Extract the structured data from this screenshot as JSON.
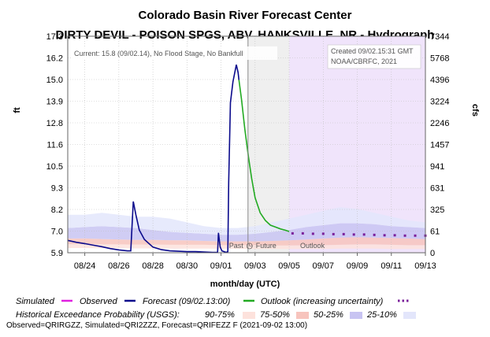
{
  "titles": {
    "main": "Colorado Basin River Forecast Center",
    "sub": "DIRTY DEVIL - POISON SPGS, ABV, HANKSVILLE, NR - Hydrograph"
  },
  "notes": {
    "current": "Current: 15.8 (09/02.14), No Flood Stage, No Bankfull",
    "created": "Created 09/02.15:31 GMT",
    "credit": "NOAA/CBRFC, 2021",
    "past": "Past",
    "future": "Future",
    "outlook": "Outlook"
  },
  "legend": {
    "simulated": "Simulated",
    "observed": "Observed",
    "forecast": "Forecast (09/02.13:00)",
    "outlook": "Outlook (increasing uncertainty)",
    "hist_title": "Historical Exceedance Probability (USGS):",
    "p90_75": "90-75%",
    "p75_50": "75-50%",
    "p50_25": "50-25%",
    "p25_10": "25-10%"
  },
  "footer": "Observed=QRIRGZZ, Simulated=QRI2ZZZ, Forecast=QRIFEZZ F (2021-09-02 13:00)",
  "colors": {
    "observed": "#0a0a8c",
    "forecast": "#22aa22",
    "outlook": "#7a1f9a",
    "simulated": "#e020e0",
    "future_shade": "#efefef",
    "outlook_shade": "#f0e4fb",
    "band_90_75": "#fde2dc",
    "band_75_50": "#f7c4bd",
    "band_50_25": "#c8c4f2",
    "band_25_10": "#e3e6fb"
  },
  "chart_data": {
    "type": "line",
    "xlabel": "month/day (UTC)",
    "ylabel_left": "ft",
    "ylabel_right": "cfs",
    "x_start": "08/23",
    "x_end": "09/13",
    "x_ticks": [
      "08/24",
      "08/26",
      "08/28",
      "08/30",
      "09/01",
      "09/03",
      "09/05",
      "09/07",
      "09/09",
      "09/11",
      "09/13"
    ],
    "y_ticks_ft": [
      "5.9",
      "7.0",
      "8.2",
      "9.3",
      "10.5",
      "11.6",
      "12.8",
      "13.9",
      "15.0",
      "16.2",
      "17.3"
    ],
    "y_ticks_cfs": [
      "0",
      "61",
      "325",
      "631",
      "941",
      "1457",
      "2246",
      "3224",
      "4396",
      "5768",
      "7344"
    ],
    "ylim_ft": [
      5.9,
      17.3
    ],
    "grid": true,
    "now": "09/02.14",
    "outlook_start": "09/05.00",
    "series": [
      {
        "name": "Observed",
        "x": [
          0.0,
          0.5,
          1.0,
          1.5,
          2.0,
          2.5,
          3.0,
          3.5,
          3.7,
          3.75,
          3.85,
          4.0,
          4.2,
          4.5,
          5.0,
          5.5,
          6.0,
          6.5,
          7.0,
          7.5,
          8.0,
          8.5,
          8.8,
          8.85,
          8.95,
          9.05,
          9.3,
          9.4,
          9.45,
          9.55,
          9.7,
          9.9,
          10.0,
          10.05
        ],
        "y": [
          6.55,
          6.45,
          6.38,
          6.3,
          6.22,
          6.12,
          6.05,
          6.0,
          6.0,
          6.9,
          8.6,
          7.9,
          7.1,
          6.6,
          6.2,
          6.06,
          6.0,
          5.98,
          5.96,
          5.96,
          5.94,
          5.92,
          5.92,
          6.95,
          6.2,
          6.0,
          5.92,
          5.96,
          9.6,
          13.8,
          14.9,
          15.8,
          15.4,
          15.0
        ]
      },
      {
        "name": "Forecast (09/02.13:00)",
        "x": [
          10.05,
          10.2,
          10.4,
          10.6,
          10.8,
          11.0,
          11.3,
          11.6,
          11.9,
          12.2,
          12.5,
          12.8,
          13.0
        ],
        "y": [
          15.0,
          14.0,
          12.4,
          11.0,
          9.8,
          8.8,
          8.0,
          7.6,
          7.35,
          7.25,
          7.15,
          7.08,
          7.02
        ]
      },
      {
        "name": "Outlook (increasing uncertainty)",
        "x": [
          13.2,
          13.8,
          14.4,
          15.0,
          15.6,
          16.2,
          16.8,
          17.4,
          18.0,
          18.6,
          19.2,
          19.8,
          20.4,
          21.0
        ],
        "y": [
          6.92,
          6.92,
          6.9,
          6.9,
          6.88,
          6.88,
          6.86,
          6.86,
          6.84,
          6.82,
          6.82,
          6.8,
          6.8,
          6.8
        ]
      }
    ],
    "exceedance_x": [
      0,
      1,
      2,
      3,
      4,
      5,
      6,
      7,
      8,
      9,
      10,
      11,
      12,
      13,
      14,
      15,
      16,
      17,
      18,
      19,
      20,
      21
    ],
    "exceedance_bands": [
      {
        "name": "90-75%",
        "low": [
          6.15,
          6.15,
          6.14,
          6.14,
          6.13,
          6.13,
          6.12,
          6.12,
          6.12,
          6.11,
          6.11,
          6.1,
          6.1,
          6.1,
          6.1,
          6.1,
          6.12,
          6.12,
          6.12,
          6.1,
          6.1,
          6.1
        ],
        "high": [
          6.35,
          6.35,
          6.34,
          6.34,
          6.33,
          6.33,
          6.32,
          6.32,
          6.32,
          6.3,
          6.3,
          6.3,
          6.28,
          6.28,
          6.3,
          6.3,
          6.32,
          6.34,
          6.34,
          6.32,
          6.3,
          6.3
        ]
      },
      {
        "name": "75-50%",
        "low": [
          6.35,
          6.35,
          6.34,
          6.34,
          6.33,
          6.33,
          6.32,
          6.32,
          6.32,
          6.3,
          6.3,
          6.3,
          6.28,
          6.28,
          6.3,
          6.3,
          6.32,
          6.34,
          6.34,
          6.32,
          6.3,
          6.3
        ],
        "high": [
          6.65,
          6.65,
          6.62,
          6.6,
          6.58,
          6.58,
          6.56,
          6.55,
          6.52,
          6.5,
          6.5,
          6.5,
          6.52,
          6.55,
          6.6,
          6.65,
          6.7,
          6.72,
          6.7,
          6.68,
          6.65,
          6.62
        ]
      },
      {
        "name": "50-25%",
        "low": [
          6.65,
          6.65,
          6.62,
          6.6,
          6.58,
          6.58,
          6.56,
          6.55,
          6.52,
          6.5,
          6.5,
          6.5,
          6.52,
          6.55,
          6.6,
          6.65,
          6.7,
          6.72,
          6.7,
          6.68,
          6.65,
          6.62
        ],
        "high": [
          7.2,
          7.25,
          7.3,
          7.25,
          7.2,
          7.1,
          7.0,
          6.95,
          6.9,
          6.85,
          6.85,
          6.9,
          7.0,
          7.1,
          7.25,
          7.35,
          7.45,
          7.45,
          7.4,
          7.3,
          7.25,
          7.2
        ]
      },
      {
        "name": "25-10%",
        "low": [
          7.2,
          7.25,
          7.3,
          7.25,
          7.2,
          7.1,
          7.0,
          6.95,
          6.9,
          6.85,
          6.85,
          6.9,
          7.0,
          7.1,
          7.25,
          7.35,
          7.45,
          7.45,
          7.4,
          7.3,
          7.25,
          7.2
        ],
        "high": [
          7.9,
          7.9,
          8.0,
          7.9,
          7.8,
          7.8,
          7.7,
          7.5,
          7.3,
          7.2,
          7.2,
          7.3,
          7.5,
          7.7,
          7.9,
          8.1,
          8.3,
          8.2,
          8.0,
          7.8,
          7.6,
          7.5
        ]
      }
    ]
  }
}
